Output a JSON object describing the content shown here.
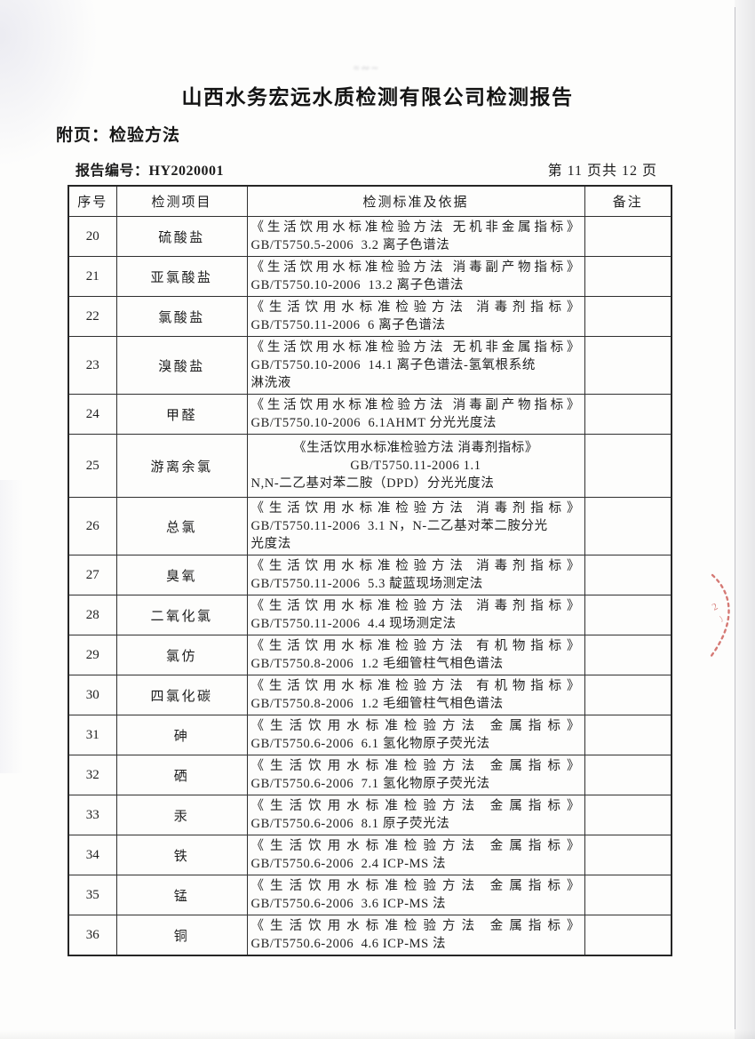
{
  "page": {
    "title": "山西水务宏远水质检测有限公司检测报告",
    "subtitle": "附页：检验方法",
    "report_no_label": "报告编号：",
    "report_no": "HY2020001",
    "page_info": "第 11 页共 12 页",
    "smudge_text": "≈∾∼"
  },
  "colors": {
    "text": "#1c1c1c",
    "table_border": "#2f2f2f",
    "seal_red": "#c23b34"
  },
  "table": {
    "headers": [
      "序号",
      "检测项目",
      "检测标准及依据",
      "备注"
    ],
    "rows": [
      {
        "no": "20",
        "item": "硫酸盐",
        "remark": "",
        "standard": [
          {
            "text": "《生活饮用水标准检验方法 无机非金属指标》",
            "align": "justify"
          },
          {
            "text": "GB/T5750.5-2006  3.2 离子色谱法",
            "align": "left"
          }
        ]
      },
      {
        "no": "21",
        "item": "亚氯酸盐",
        "remark": "",
        "standard": [
          {
            "text": "《生活饮用水标准检验方法 消毒副产物指标》",
            "align": "justify"
          },
          {
            "text": "GB/T5750.10-2006  13.2 离子色谱法",
            "align": "left"
          }
        ]
      },
      {
        "no": "22",
        "item": "氯酸盐",
        "remark": "",
        "standard": [
          {
            "text": "《生活饮用水标准检验方法 消毒剂指标》",
            "align": "justify"
          },
          {
            "text": "GB/T5750.11-2006  6 离子色谱法",
            "align": "left"
          }
        ]
      },
      {
        "no": "23",
        "item": "溴酸盐",
        "remark": "",
        "standard": [
          {
            "text": "《生活饮用水标准检验方法 无机非金属指标》",
            "align": "justify"
          },
          {
            "text": "GB/T5750.10-2006  14.1 离子色谱法-氢氧根系统",
            "align": "left"
          },
          {
            "text": "淋洗液",
            "align": "left"
          }
        ]
      },
      {
        "no": "24",
        "item": "甲醛",
        "remark": "",
        "standard": [
          {
            "text": "《生活饮用水标准检验方法 消毒副产物指标》",
            "align": "justify"
          },
          {
            "text": "GB/T5750.10-2006  6.1AHMT 分光光度法",
            "align": "left"
          }
        ]
      },
      {
        "no": "25",
        "item": "游离余氯",
        "remark": "",
        "standard": [
          {
            "text": "《生活饮用水标准检验方法 消毒剂指标》",
            "align": "center"
          },
          {
            "text": "GB/T5750.11-2006 1.1",
            "align": "center"
          },
          {
            "text": "N,N-二乙基对苯二胺（DPD）分光光度法",
            "align": "left"
          }
        ]
      },
      {
        "no": "26",
        "item": "总氯",
        "remark": "",
        "standard": [
          {
            "text": "《生活饮用水标准检验方法 消毒剂指标》",
            "align": "justify"
          },
          {
            "text": "GB/T5750.11-2006  3.1 N，N-二乙基对苯二胺分光",
            "align": "left"
          },
          {
            "text": "光度法",
            "align": "left"
          }
        ]
      },
      {
        "no": "27",
        "item": "臭氧",
        "remark": "",
        "standard": [
          {
            "text": "《生活饮用水标准检验方法 消毒剂指标》",
            "align": "justify"
          },
          {
            "text": "GB/T5750.11-2006  5.3 靛蓝现场测定法",
            "align": "left"
          }
        ]
      },
      {
        "no": "28",
        "item": "二氧化氯",
        "remark": "",
        "standard": [
          {
            "text": "《生活饮用水标准检验方法 消毒剂指标》",
            "align": "justify"
          },
          {
            "text": "GB/T5750.11-2006  4.4 现场测定法",
            "align": "left"
          }
        ]
      },
      {
        "no": "29",
        "item": "氯仿",
        "remark": "",
        "standard": [
          {
            "text": "《生活饮用水标准检验方法 有机物指标》",
            "align": "justify"
          },
          {
            "text": "GB/T5750.8-2006  1.2 毛细管柱气相色谱法",
            "align": "left"
          }
        ]
      },
      {
        "no": "30",
        "item": "四氯化碳",
        "remark": "",
        "standard": [
          {
            "text": "《生活饮用水标准检验方法 有机物指标》",
            "align": "justify"
          },
          {
            "text": "GB/T5750.8-2006  1.2 毛细管柱气相色谱法",
            "align": "left"
          }
        ]
      },
      {
        "no": "31",
        "item": "砷",
        "remark": "",
        "standard": [
          {
            "text": "《生活饮用水标准检验方法 金属指标》",
            "align": "justify"
          },
          {
            "text": "GB/T5750.6-2006  6.1 氢化物原子荧光法",
            "align": "left"
          }
        ]
      },
      {
        "no": "32",
        "item": "硒",
        "remark": "",
        "standard": [
          {
            "text": "《生活饮用水标准检验方法 金属指标》",
            "align": "justify"
          },
          {
            "text": "GB/T5750.6-2006  7.1 氢化物原子荧光法",
            "align": "left"
          }
        ]
      },
      {
        "no": "33",
        "item": "汞",
        "remark": "",
        "standard": [
          {
            "text": "《生活饮用水标准检验方法 金属指标》",
            "align": "justify"
          },
          {
            "text": "GB/T5750.6-2006  8.1 原子荧光法",
            "align": "left"
          }
        ]
      },
      {
        "no": "34",
        "item": "铁",
        "remark": "",
        "standard": [
          {
            "text": "《生活饮用水标准检验方法 金属指标》",
            "align": "justify"
          },
          {
            "text": "GB/T5750.6-2006  2.4 ICP-MS 法",
            "align": "left"
          }
        ]
      },
      {
        "no": "35",
        "item": "锰",
        "remark": "",
        "standard": [
          {
            "text": "《生活饮用水标准检验方法 金属指标》",
            "align": "justify"
          },
          {
            "text": "GB/T5750.6-2006  3.6 ICP-MS 法",
            "align": "left"
          }
        ]
      },
      {
        "no": "36",
        "item": "铜",
        "remark": "",
        "standard": [
          {
            "text": "《生活饮用水标准检验方法 金属指标》",
            "align": "justify"
          },
          {
            "text": "GB/T5750.6-2006  4.6 ICP-MS 法",
            "align": "left"
          }
        ]
      }
    ]
  }
}
